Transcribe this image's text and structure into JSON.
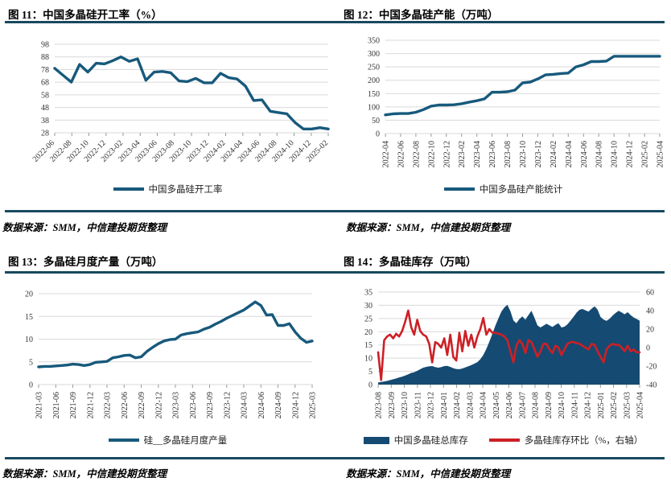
{
  "page": {
    "background": "#ffffff",
    "rule_color": "#17495F",
    "grid_color": "#d9d9d9",
    "source_text": "数据来源：SMM，中信建投期货整理"
  },
  "chart_data": [
    {
      "id": "fig11",
      "type": "line",
      "title": "图 11：中国多晶硅开工率（%）",
      "legend": [
        {
          "label": "中国多晶硅开工率",
          "marker": "line",
          "color": "#17597C"
        }
      ],
      "legend_position": "bottom",
      "grid": "horizontal",
      "categories": [
        "2022-06",
        "2022-08",
        "2022-10",
        "2022-12",
        "2023-02",
        "2023-04",
        "2023-06",
        "2023-08",
        "2023-10",
        "2023-12",
        "2024-02",
        "2024-04",
        "2024-06",
        "2024-08",
        "2024-10",
        "2024-12",
        "2025-02"
      ],
      "y_left": {
        "min": 28,
        "max": 98,
        "ticks": [
          98,
          88,
          78,
          68,
          58,
          48,
          38,
          28
        ]
      },
      "series": [
        {
          "name": "中国多晶硅开工率",
          "type": "line",
          "axis": "left",
          "color": "#17597C",
          "width": 3.4,
          "values": [
            79,
            73.5,
            68,
            82,
            76,
            83,
            82.5,
            85,
            88,
            84.5,
            86.5,
            69.5,
            76,
            76.5,
            75.5,
            69,
            68.5,
            71,
            67.5,
            67.5,
            75,
            71.5,
            70.5,
            65,
            53.5,
            54,
            45,
            44,
            43,
            36,
            31,
            31,
            32,
            31
          ]
        }
      ]
    },
    {
      "id": "fig12",
      "type": "line",
      "title": "图 12：中国多晶硅产能（万吨）",
      "legend": [
        {
          "label": "中国多晶硅产能统计",
          "marker": "line",
          "color": "#17597C"
        }
      ],
      "legend_position": "bottom",
      "grid": "horizontal",
      "categories": [
        "2022-04",
        "2022-06",
        "2022-08",
        "2022-10",
        "2022-12",
        "2023-02",
        "2023-04",
        "2023-06",
        "2023-08",
        "2023-10",
        "2023-12",
        "2024-02",
        "2024-04",
        "2024-06",
        "2024-08",
        "2024-10",
        "2024-12",
        "2025-02",
        "2025-04"
      ],
      "y_left": {
        "min": 0,
        "max": 350,
        "ticks": [
          350,
          300,
          250,
          200,
          150,
          100,
          50,
          0
        ]
      },
      "series": [
        {
          "name": "中国多晶硅产能统计",
          "type": "line",
          "axis": "left",
          "color": "#17597C",
          "width": 3.4,
          "values": [
            70,
            74,
            75,
            75,
            80,
            90,
            103,
            107,
            107,
            108,
            112,
            118,
            123,
            130,
            155,
            155,
            157,
            163,
            190,
            193,
            205,
            220,
            222,
            225,
            227,
            250,
            258,
            270,
            270,
            272,
            290,
            290,
            290,
            290,
            290,
            290,
            290
          ]
        }
      ]
    },
    {
      "id": "fig13",
      "type": "line",
      "title": "图 13：多晶硅月度产量（万吨）",
      "legend": [
        {
          "label": "硅__多晶硅月度产量",
          "marker": "line",
          "color": "#17597C"
        }
      ],
      "legend_position": "bottom",
      "grid": "horizontal",
      "categories": [
        "2021-03",
        "2021-06",
        "2021-09",
        "2021-12",
        "2022-03",
        "2022-06",
        "2022-09",
        "2022-12",
        "2023-03",
        "2023-06",
        "2023-09",
        "2023-12",
        "2024-03",
        "2024-06",
        "2024-09",
        "2024-12",
        "2025-03"
      ],
      "y_left": {
        "min": 0,
        "max": 20,
        "ticks": [
          20,
          15,
          10,
          5,
          0
        ]
      },
      "series": [
        {
          "name": "硅__多晶硅月度产量",
          "type": "line",
          "axis": "left",
          "color": "#17597C",
          "width": 3.4,
          "values": [
            3.9,
            4.0,
            4.0,
            4.1,
            4.2,
            4.3,
            4.5,
            4.4,
            4.2,
            4.4,
            4.9,
            5.0,
            5.1,
            5.9,
            6.1,
            6.4,
            6.5,
            5.9,
            6.1,
            7.3,
            8.2,
            9.0,
            9.6,
            9.9,
            10.0,
            10.9,
            11.2,
            11.4,
            11.6,
            12.2,
            12.6,
            13.3,
            13.9,
            14.6,
            15.2,
            15.8,
            16.4,
            17.3,
            18.2,
            17.4,
            15.3,
            15.4,
            13.0,
            13.0,
            13.4,
            11.6,
            10.2,
            9.3,
            9.6
          ]
        }
      ]
    },
    {
      "id": "fig14",
      "type": "area",
      "title": "图 14：多晶硅库存（万吨）",
      "legend": [
        {
          "label": "中国多晶硅总库存",
          "marker": "area",
          "color": "#154A72"
        },
        {
          "label": "多晶硅库存环比（%，右轴）",
          "marker": "line",
          "color": "#CC2026"
        }
      ],
      "legend_position": "bottom",
      "grid": "horizontal",
      "categories": [
        "2023-08",
        "2023-09",
        "2023-10",
        "2023-11",
        "2023-12",
        "2024-01",
        "2024-02",
        "2024-03",
        "2024-04",
        "2024-05",
        "2024-06",
        "2024-07",
        "2024-08",
        "2024-09",
        "2024-10",
        "2024-11",
        "2024-12",
        "2025-01",
        "2025-02",
        "2025-03",
        "2025-04"
      ],
      "y_left": {
        "min": 0,
        "max": 35,
        "ticks": [
          35,
          30,
          25,
          20,
          15,
          10,
          5,
          0
        ]
      },
      "y_right": {
        "min": -40,
        "max": 60,
        "ticks": [
          60,
          40,
          20,
          0,
          -20,
          -40
        ]
      },
      "series": [
        {
          "name": "中国多晶硅总库存",
          "type": "area",
          "axis": "left",
          "color": "#154A72",
          "values": [
            0.8,
            1.0,
            1.2,
            1.4,
            1.7,
            2.0,
            2.3,
            2.7,
            3.0,
            3.4,
            3.9,
            4.4,
            4.7,
            5.2,
            5.8,
            6.4,
            6.7,
            6.9,
            7.0,
            6.6,
            6.4,
            6.6,
            7.0,
            7.1,
            6.7,
            6.2,
            5.9,
            5.8,
            6.1,
            6.5,
            6.9,
            7.4,
            7.9,
            8.5,
            9.6,
            11.2,
            13.5,
            16.2,
            19.2,
            22.3,
            25.0,
            27.6,
            29.2,
            30.2,
            27.8,
            24.3,
            23.2,
            24.8,
            25.8,
            24.6,
            26.3,
            27.9,
            25.3,
            22.4,
            21.6,
            22.3,
            23.0,
            22.4,
            21.8,
            22.6,
            23.2,
            21.6,
            21.9,
            22.8,
            24.2,
            25.6,
            27.2,
            28.3,
            28.6,
            28.1,
            27.6,
            28.7,
            29.6,
            28.4,
            25.6,
            24.6,
            24.1,
            24.9,
            26.1,
            27.1,
            27.9,
            27.3,
            26.6,
            27.4,
            26.3,
            25.4,
            24.8,
            24.2
          ]
        },
        {
          "name": "多晶硅库存环比（%，右轴）",
          "type": "line",
          "axis": "right",
          "color": "#CC2026",
          "width": 2.6,
          "values": [
            -5,
            -35,
            8,
            12,
            14,
            10,
            15,
            12,
            18,
            28,
            40,
            22,
            14,
            30,
            18,
            14,
            12,
            4,
            -16,
            6,
            4,
            0,
            10,
            -8,
            14,
            -10,
            -14,
            16,
            -4,
            18,
            2,
            14,
            0,
            12,
            20,
            32,
            14,
            20,
            16,
            16,
            15,
            14,
            12,
            8,
            -4,
            -16,
            2,
            8,
            4,
            -6,
            8,
            6,
            -2,
            -10,
            -4,
            4,
            4,
            -2,
            -6,
            2,
            0,
            -8,
            -2,
            4,
            6,
            6,
            5,
            4,
            2,
            0,
            -2,
            4,
            3,
            -4,
            -10,
            -16,
            -2,
            2,
            4,
            3,
            3,
            0,
            -4,
            2,
            -4,
            -2,
            -5,
            -5
          ]
        }
      ]
    }
  ]
}
